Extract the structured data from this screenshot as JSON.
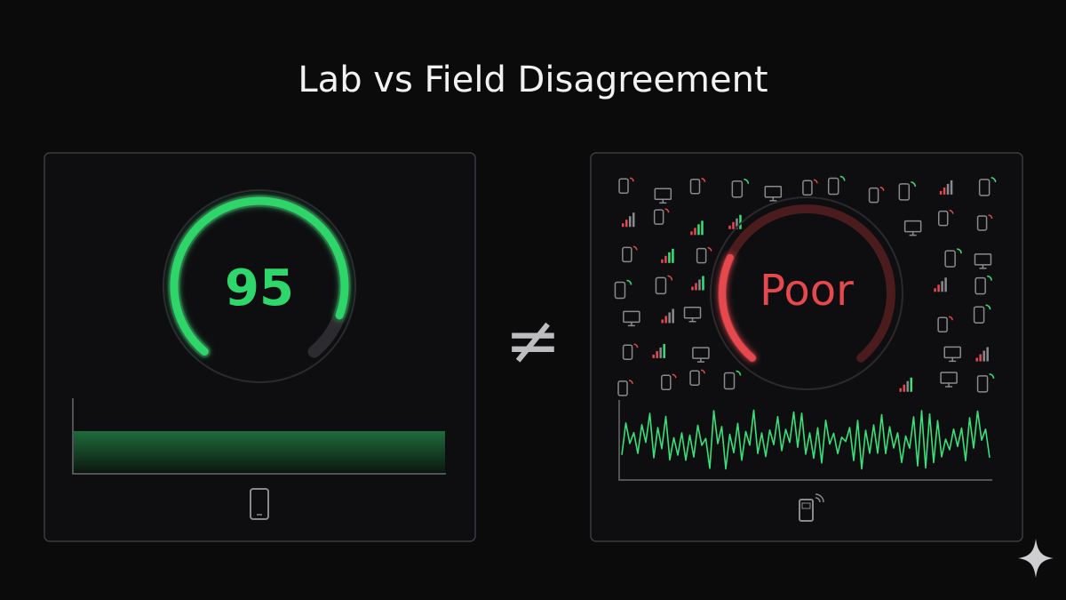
{
  "title": "Lab vs Field Disagreement",
  "lab": {
    "score": 95
  },
  "separator": "≠",
  "field": {
    "rating": "Poor"
  }
}
